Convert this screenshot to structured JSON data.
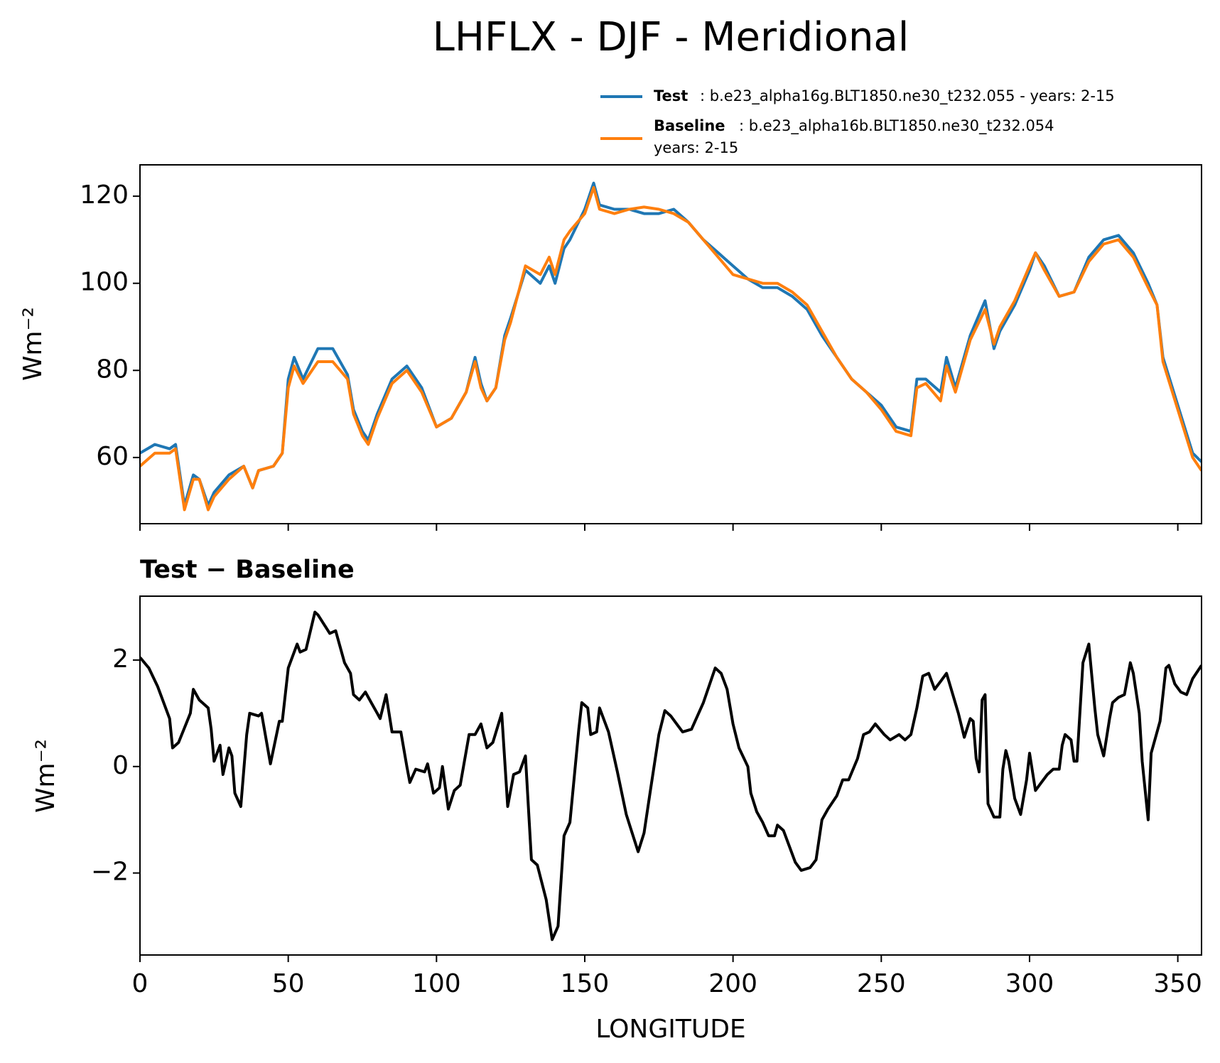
{
  "chart_data": [
    {
      "type": "line",
      "title": "LHFLX - DJF - Meridional",
      "y_label": "Wm⁻²",
      "x": [
        0,
        5,
        10,
        12,
        15,
        18,
        20,
        23,
        25,
        30,
        35,
        38,
        40,
        45,
        48,
        50,
        52,
        55,
        60,
        65,
        70,
        72,
        75,
        77,
        80,
        85,
        90,
        95,
        100,
        105,
        110,
        113,
        115,
        117,
        120,
        123,
        125,
        130,
        135,
        138,
        140,
        143,
        145,
        150,
        153,
        155,
        160,
        165,
        170,
        175,
        180,
        185,
        190,
        195,
        200,
        205,
        210,
        215,
        220,
        225,
        230,
        235,
        240,
        245,
        250,
        255,
        260,
        262,
        265,
        270,
        272,
        275,
        280,
        285,
        288,
        290,
        295,
        300,
        302,
        305,
        310,
        315,
        320,
        325,
        330,
        335,
        340,
        343,
        345,
        350,
        355,
        358
      ],
      "series": [
        {
          "name": "Test",
          "run": [
            ": b.e23_alpha16g.BLT1850.ne30_t232.055 - years: 2-15"
          ],
          "color": "#1f77b4",
          "values": [
            61,
            63,
            62,
            63,
            49,
            56,
            55,
            49,
            52,
            56,
            58,
            53,
            57,
            58,
            61,
            78,
            83,
            78,
            85,
            85,
            79,
            71,
            66,
            64,
            70,
            78,
            81,
            76,
            67,
            69,
            75,
            83,
            77,
            73,
            76,
            88,
            92,
            103,
            100,
            104,
            100,
            108,
            110,
            117,
            123,
            118,
            117,
            117,
            116,
            116,
            117,
            114,
            110,
            107,
            104,
            101,
            99,
            99,
            97,
            94,
            88,
            83,
            78,
            75,
            72,
            67,
            66,
            78,
            78,
            75,
            83,
            76,
            88,
            96,
            85,
            89,
            95,
            103,
            107,
            104,
            97,
            98,
            106,
            110,
            111,
            107,
            100,
            95,
            83,
            72,
            61,
            59
          ]
        },
        {
          "name": "Baseline",
          "run": [
            ": b.e23_alpha16b.BLT1850.ne30_t232.054",
            "years: 2-15"
          ],
          "color": "#ff7f0e",
          "values": [
            58,
            61,
            61,
            62,
            48,
            55,
            55,
            48,
            51,
            55,
            58,
            53,
            57,
            58,
            61,
            76,
            81,
            77,
            82,
            82,
            78,
            70,
            65,
            63,
            69,
            77,
            80,
            75,
            67,
            69,
            75,
            82,
            76,
            73,
            76,
            87,
            91,
            104,
            102,
            106,
            102,
            110,
            112,
            116,
            122,
            117,
            116,
            117,
            117.5,
            117,
            116,
            114,
            110,
            106,
            102,
            101,
            100,
            100,
            98,
            95,
            89,
            83,
            78,
            75,
            71,
            66,
            65,
            76,
            77,
            73,
            81,
            75,
            87,
            94,
            86,
            90,
            96,
            104,
            107,
            103,
            97,
            98,
            105,
            109,
            110,
            106,
            99,
            95,
            82,
            71,
            60,
            57
          ]
        }
      ],
      "xlim": [
        0,
        358
      ],
      "ylim": [
        44.8,
        127.2
      ],
      "yticks": [
        60,
        80,
        100,
        120
      ]
    },
    {
      "type": "line",
      "title": "Test − Baseline",
      "y_label": "Wm⁻²",
      "x_label": "LONGITUDE",
      "x": [
        0,
        3,
        6,
        10,
        11,
        13,
        17,
        18,
        20,
        23,
        24,
        25,
        27,
        28,
        30,
        31,
        32,
        34,
        36,
        37,
        40,
        41,
        44,
        47,
        48,
        50,
        53,
        54,
        56,
        59,
        60,
        64,
        66,
        69,
        71,
        72,
        74,
        76,
        78,
        80,
        81,
        83,
        85,
        88,
        90,
        91,
        93,
        96,
        97,
        99,
        101,
        102,
        104,
        106,
        108,
        111,
        113,
        115,
        117,
        119,
        122,
        124,
        126,
        128,
        130,
        132,
        134,
        137,
        139,
        141,
        143,
        145,
        148,
        149,
        151,
        152,
        154,
        155,
        158,
        161,
        164,
        166,
        168,
        170,
        172,
        175,
        177,
        179,
        181,
        183,
        186,
        190,
        194,
        196,
        198,
        200,
        202,
        205,
        206,
        208,
        210,
        212,
        214,
        215,
        217,
        221,
        223,
        226,
        228,
        230,
        232,
        235,
        237,
        239,
        242,
        244,
        246,
        248,
        251,
        253,
        256,
        258,
        260,
        262,
        264,
        266,
        268,
        270,
        272,
        276,
        278,
        280,
        281,
        282,
        283,
        284,
        285,
        286,
        288,
        290,
        291,
        292,
        293,
        295,
        297,
        299,
        300,
        302,
        304,
        306,
        308,
        310,
        311,
        312,
        314,
        315,
        316,
        318,
        320,
        322,
        323,
        325,
        327,
        328,
        330,
        332,
        334,
        335,
        337,
        338,
        340,
        341,
        344,
        346,
        347,
        349,
        351,
        353,
        355,
        358
      ],
      "series": [
        {
          "name": "Test − Baseline",
          "color": "#000000",
          "values": [
            2.05,
            1.85,
            1.5,
            0.9,
            0.35,
            0.45,
            1.0,
            1.45,
            1.25,
            1.1,
            0.7,
            0.1,
            0.4,
            -0.15,
            0.35,
            0.2,
            -0.5,
            -0.75,
            0.6,
            1.0,
            0.95,
            1.0,
            0.05,
            0.85,
            0.85,
            1.85,
            2.3,
            2.15,
            2.2,
            2.9,
            2.85,
            2.5,
            2.55,
            1.95,
            1.75,
            1.35,
            1.25,
            1.4,
            1.2,
            1.0,
            0.9,
            1.35,
            0.65,
            0.65,
            0.0,
            -0.3,
            -0.05,
            -0.1,
            0.05,
            -0.5,
            -0.4,
            0.0,
            -0.8,
            -0.45,
            -0.35,
            0.6,
            0.6,
            0.8,
            0.35,
            0.45,
            1.0,
            -0.75,
            -0.15,
            -0.1,
            0.2,
            -1.75,
            -1.85,
            -2.5,
            -3.25,
            -3.0,
            -1.3,
            -1.05,
            0.7,
            1.2,
            1.1,
            0.6,
            0.65,
            1.1,
            0.65,
            -0.1,
            -0.9,
            -1.25,
            -1.6,
            -1.25,
            -0.5,
            0.6,
            1.05,
            0.95,
            0.8,
            0.65,
            0.7,
            1.2,
            1.85,
            1.75,
            1.45,
            0.8,
            0.35,
            0.0,
            -0.5,
            -0.85,
            -1.05,
            -1.3,
            -1.3,
            -1.1,
            -1.2,
            -1.8,
            -1.95,
            -1.9,
            -1.75,
            -1.0,
            -0.8,
            -0.55,
            -0.25,
            -0.25,
            0.15,
            0.6,
            0.65,
            0.8,
            0.6,
            0.5,
            0.6,
            0.5,
            0.6,
            1.1,
            1.7,
            1.75,
            1.45,
            1.6,
            1.75,
            1.0,
            0.55,
            0.9,
            0.85,
            0.15,
            -0.1,
            1.25,
            1.35,
            -0.7,
            -0.95,
            -0.95,
            -0.05,
            0.3,
            0.1,
            -0.6,
            -0.9,
            -0.25,
            0.25,
            -0.45,
            -0.3,
            -0.15,
            -0.05,
            -0.05,
            0.4,
            0.6,
            0.5,
            0.1,
            0.1,
            1.95,
            2.3,
            1.1,
            0.6,
            0.2,
            0.9,
            1.2,
            1.3,
            1.35,
            1.95,
            1.75,
            1.0,
            0.1,
            -1.0,
            0.25,
            0.85,
            1.85,
            1.9,
            1.55,
            1.4,
            1.35,
            1.65,
            1.9
          ]
        }
      ],
      "xlim": [
        0,
        358
      ],
      "ylim": [
        -3.54,
        3.2
      ],
      "xticks": [
        0,
        50,
        100,
        150,
        200,
        250,
        300,
        350
      ],
      "yticks": [
        {
          "value": -2,
          "label": "−2"
        },
        0,
        2
      ]
    }
  ]
}
